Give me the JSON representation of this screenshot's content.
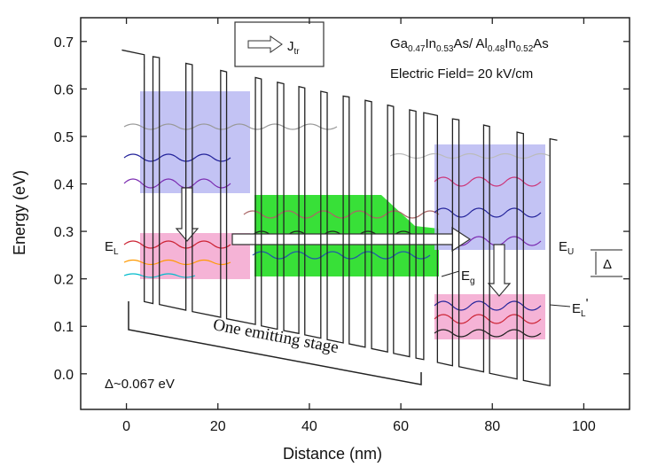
{
  "chart_data": {
    "type": "line",
    "x_label": "Distance (nm)",
    "y_label": "Energy (eV)",
    "xlim": [
      -10,
      110
    ],
    "ylim": [
      -0.075,
      0.75
    ],
    "xticks": [
      0,
      20,
      40,
      60,
      80,
      100
    ],
    "yticks": [
      {
        "value": 0,
        "label": "0.0"
      },
      0.1,
      0.2,
      0.3,
      0.4,
      0.5,
      0.6,
      0.7
    ],
    "color": "#222222",
    "x": [
      -1,
      3.9,
      3.9,
      5.8,
      5.8,
      7.2,
      7.2,
      13.0,
      13.0,
      14.4,
      14.4,
      20.6,
      20.6,
      21.9,
      21.9,
      28.2,
      28.2,
      29.5,
      29.5,
      33.0,
      33.0,
      34.4,
      34.4,
      37.7,
      37.7,
      39.0,
      39.0,
      42.5,
      42.5,
      43.9,
      43.9,
      47.4,
      47.4,
      48.7,
      48.7,
      52.2,
      52.2,
      53.6,
      53.6,
      57.1,
      57.1,
      58.4,
      58.4,
      61.9,
      61.9,
      63.3,
      63.3,
      65.0,
      65.0,
      68.0,
      68.0,
      71.3,
      71.3,
      72.7,
      72.7,
      78.1,
      78.1,
      79.4,
      79.4,
      85.4,
      85.4,
      86.8,
      86.8,
      92.6,
      92.6,
      94.2
    ],
    "values": [
      0.682,
      0.672,
      0.152,
      0.148,
      0.668,
      0.666,
      0.146,
      0.134,
      0.654,
      0.651,
      0.131,
      0.119,
      0.639,
      0.636,
      0.116,
      0.104,
      0.624,
      0.621,
      0.101,
      0.094,
      0.614,
      0.611,
      0.091,
      0.085,
      0.605,
      0.602,
      0.082,
      0.075,
      0.595,
      0.592,
      0.072,
      0.065,
      0.585,
      0.583,
      0.063,
      0.056,
      0.576,
      0.573,
      0.053,
      0.046,
      0.566,
      0.563,
      0.043,
      0.036,
      0.556,
      0.553,
      0.033,
      0.03,
      0.55,
      0.544,
      0.024,
      0.017,
      0.537,
      0.535,
      0.015,
      0.004,
      0.524,
      0.521,
      0.001,
      -0.011,
      0.509,
      0.506,
      -0.014,
      -0.025,
      0.495,
      0.492
    ],
    "annotations": {
      "jtr": [
        "J",
        "tr"
      ],
      "material": [
        "Ga",
        "0.47",
        "In",
        "0.53",
        "As/ Al",
        "0.48",
        "In",
        "0.52",
        "As"
      ],
      "field": "Electric Field= 20 kV/cm",
      "stage": "One emitting stage",
      "delta_value": "Δ~0.067 eV",
      "el": [
        "E",
        "L"
      ],
      "eu": [
        "E",
        "U"
      ],
      "eg": [
        "E",
        "g"
      ],
      "el_prime": [
        "E",
        "L",
        "'"
      ],
      "delta": "Δ"
    }
  }
}
